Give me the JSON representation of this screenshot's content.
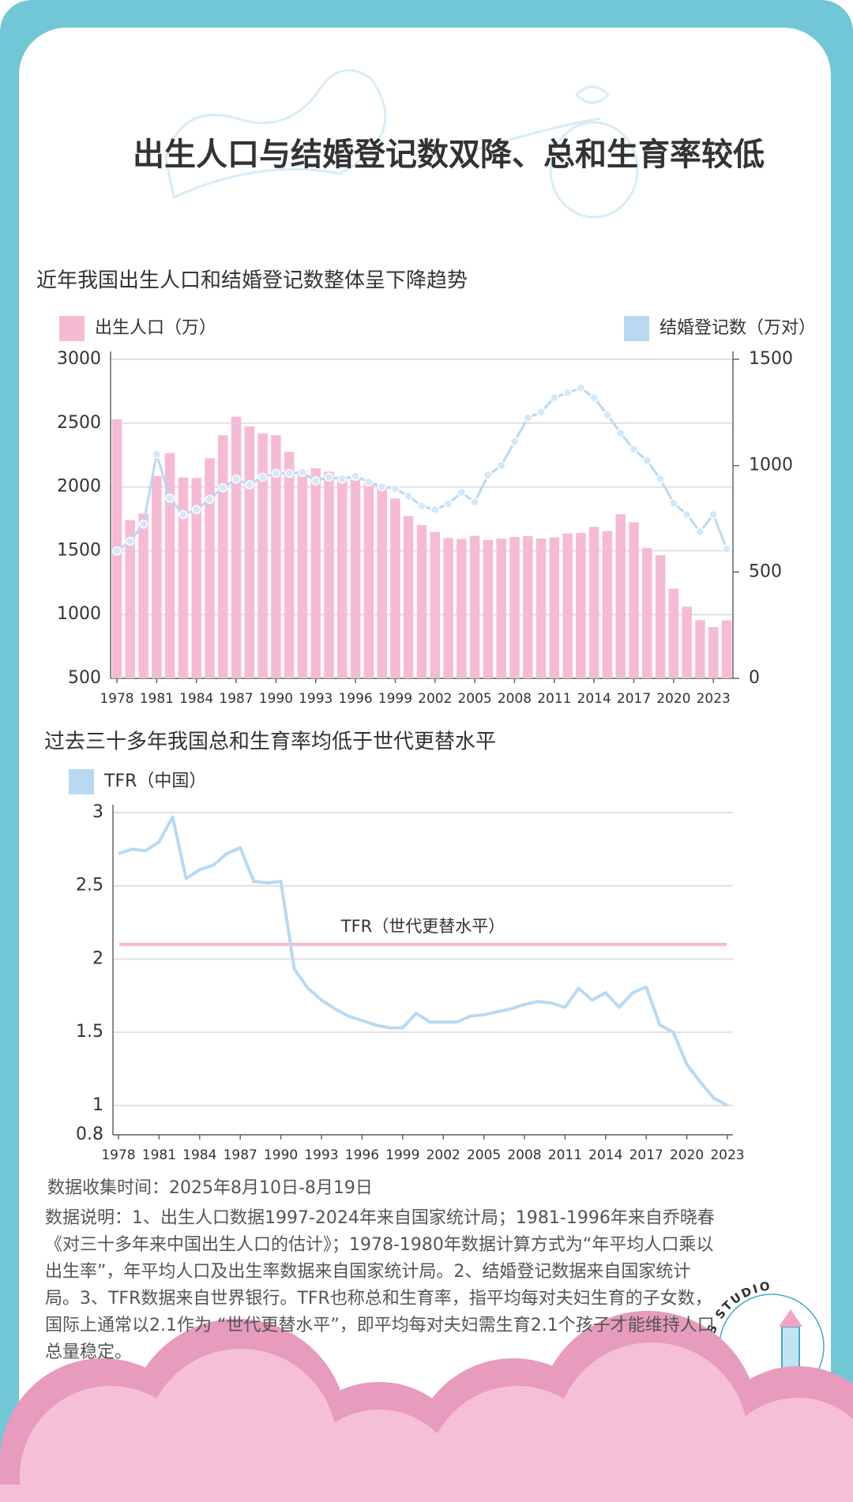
{
  "title": "出生人口与结婚登记数双降、总和生育率较低",
  "chart_data": [
    {
      "type": "bar",
      "title": "近年我国出生人口和结婚登记数整体呈下降趋势",
      "x": [
        1978,
        1979,
        1980,
        1981,
        1982,
        1983,
        1984,
        1985,
        1986,
        1987,
        1988,
        1989,
        1990,
        1991,
        1992,
        1993,
        1994,
        1995,
        1996,
        1997,
        1998,
        1999,
        2000,
        2001,
        2002,
        2003,
        2004,
        2005,
        2006,
        2007,
        2008,
        2009,
        2010,
        2011,
        2012,
        2013,
        2014,
        2015,
        2016,
        2017,
        2018,
        2019,
        2020,
        2021,
        2022,
        2023,
        2024
      ],
      "xlim": [
        1978,
        2024
      ],
      "xticks": [
        1978,
        1981,
        1984,
        1987,
        1990,
        1993,
        1996,
        1999,
        2002,
        2005,
        2008,
        2011,
        2014,
        2017,
        2020,
        2023
      ],
      "ylim": [
        500,
        3000
      ],
      "yticks": [
        500,
        1000,
        1500,
        2000,
        2500,
        3000
      ],
      "y2lim": [
        0,
        1500
      ],
      "y2ticks": [
        0,
        500,
        1000,
        1500
      ],
      "grid": true,
      "series": [
        {
          "name": "出生人口（万）",
          "color": "#f5bbd5",
          "values": [
            2530,
            1740,
            1790,
            2085,
            2265,
            2075,
            2070,
            2225,
            2405,
            2550,
            2475,
            2420,
            2405,
            2275,
            2130,
            2145,
            2120,
            2085,
            2060,
            2038,
            1991,
            1909,
            1771,
            1702,
            1647,
            1599,
            1593,
            1617,
            1585,
            1595,
            1608,
            1615,
            1596,
            1604,
            1635,
            1640,
            1687,
            1655,
            1786,
            1723,
            1523,
            1465,
            1202,
            1062,
            956,
            902,
            954
          ]
        },
        {
          "name": "结婚登记数（万对）",
          "color": "#b9d9f2",
          "type": "line",
          "axis": "y2",
          "values": [
            599,
            644,
            725,
            1054,
            847,
            770,
            793,
            842,
            896,
            937,
            910,
            946,
            964,
            964,
            968,
            928,
            946,
            937,
            950,
            923,
            901,
            892,
            856,
            811,
            793,
            820,
            874,
            829,
            955,
            1000,
            1113,
            1225,
            1252,
            1320,
            1342,
            1365,
            1320,
            1239,
            1153,
            1077,
            1023,
            937,
            824,
            770,
            689,
            770,
            608
          ]
        }
      ]
    },
    {
      "type": "line",
      "title": "过去三十多年我国总和生育率均低于世代更替水平",
      "x": [
        1978,
        1979,
        1980,
        1981,
        1982,
        1983,
        1984,
        1985,
        1986,
        1987,
        1988,
        1989,
        1990,
        1991,
        1992,
        1993,
        1994,
        1995,
        1996,
        1997,
        1998,
        1999,
        2000,
        2001,
        2002,
        2003,
        2004,
        2005,
        2006,
        2007,
        2008,
        2009,
        2010,
        2011,
        2012,
        2013,
        2014,
        2015,
        2016,
        2017,
        2018,
        2019,
        2020,
        2021,
        2022,
        2023
      ],
      "xlim": [
        1978,
        2023
      ],
      "xticks": [
        1978,
        1981,
        1984,
        1987,
        1990,
        1993,
        1996,
        1999,
        2002,
        2005,
        2008,
        2011,
        2014,
        2017,
        2020,
        2023
      ],
      "ylim": [
        0.8,
        3
      ],
      "yticks": [
        0.8,
        1,
        1.5,
        2,
        2.5,
        3
      ],
      "grid": true,
      "series": [
        {
          "name": "TFR（中国）",
          "color": "#b9d9f2",
          "values": [
            2.72,
            2.75,
            2.74,
            2.8,
            2.97,
            2.55,
            2.61,
            2.64,
            2.72,
            2.76,
            2.53,
            2.52,
            2.53,
            1.93,
            1.8,
            1.72,
            1.66,
            1.61,
            1.58,
            1.55,
            1.53,
            1.53,
            1.63,
            1.57,
            1.57,
            1.57,
            1.61,
            1.62,
            1.64,
            1.66,
            1.69,
            1.71,
            1.7,
            1.67,
            1.8,
            1.72,
            1.77,
            1.67,
            1.77,
            1.81,
            1.55,
            1.5,
            1.28,
            1.16,
            1.05,
            1.0
          ]
        }
      ],
      "reference": {
        "value": 2.1,
        "label": "TFR（世代更替水平）",
        "color": "#f4b8d4"
      }
    }
  ],
  "collection_time": "数据收集时间：2025年8月10日-8月19日",
  "note": "数据说明：1、出生人口数据1997-2024年来自国家统计局；1981-1996年来自乔晓春《对三十多年来中国出生人口的估计》；1978-1980年数据计算方式为“年平均人口乘以出生率”，年平均人口及出生率数据来自国家统计局。2、结婚登记数据来自国家统计局。3、TFR数据来自世界银行。TFR也称总和生育率，指平均每对夫妇生育的子女数，国际上通常以2.1作为 “世代更替水平”，即平均每对夫妇需生育2.1个孩子才能维持人口总量稳定。",
  "logo": "RUC NEWS STUDIO"
}
